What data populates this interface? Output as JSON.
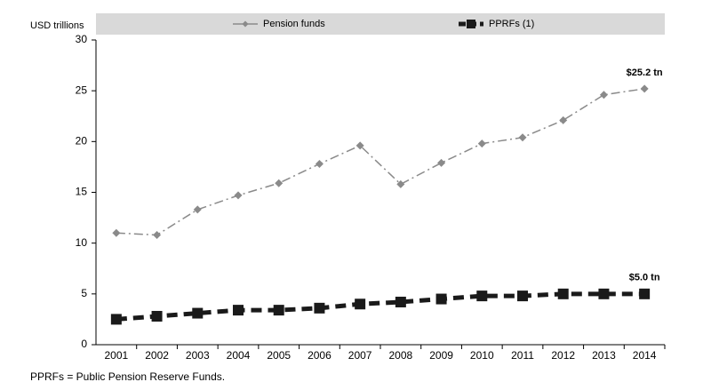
{
  "chart_data": {
    "type": "line",
    "y_label": "USD trillions",
    "categories": [
      "2001",
      "2002",
      "2003",
      "2004",
      "2005",
      "2006",
      "2007",
      "2008",
      "2009",
      "2010",
      "2011",
      "2012",
      "2013",
      "2014"
    ],
    "series": [
      {
        "name": "Pension funds",
        "color": "#8a8a8a",
        "values": [
          11.0,
          10.8,
          13.3,
          14.7,
          15.9,
          17.8,
          19.6,
          15.8,
          17.9,
          19.8,
          20.4,
          22.1,
          24.6,
          25.2
        ],
        "value_labels": [
          null,
          null,
          null,
          null,
          null,
          null,
          null,
          null,
          null,
          null,
          null,
          null,
          null,
          "$25.2 tn"
        ]
      },
      {
        "name": "PPRFs (1)",
        "color": "#1a1a1a",
        "values": [
          2.5,
          2.8,
          3.1,
          3.4,
          3.4,
          3.6,
          4.0,
          4.2,
          4.5,
          4.8,
          4.8,
          5.0,
          5.0,
          5.0
        ],
        "value_labels": [
          null,
          null,
          null,
          null,
          null,
          null,
          null,
          null,
          null,
          null,
          null,
          null,
          null,
          "$5.0 tn"
        ]
      }
    ],
    "ylim": [
      0,
      30
    ],
    "yticks": [
      0,
      5,
      10,
      15,
      20,
      25,
      30
    ],
    "grid": false,
    "legend": "top",
    "footnote": "PPRFs = Public Pension Reserve Funds."
  }
}
